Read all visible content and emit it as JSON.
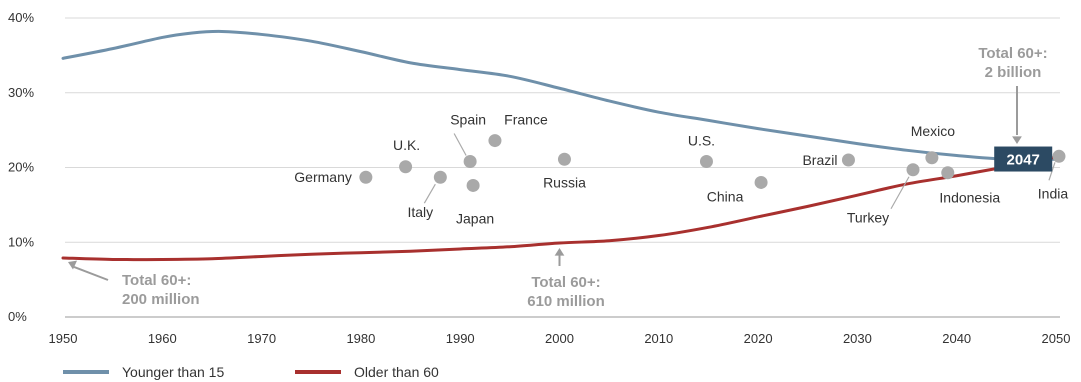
{
  "chart_data": {
    "type": "line",
    "xlim": [
      1950,
      2050
    ],
    "ylim": [
      0,
      40
    ],
    "x_ticks": [
      1950,
      1960,
      1970,
      1980,
      1990,
      2000,
      2010,
      2020,
      2030,
      2040,
      2050
    ],
    "y_ticks": [
      {
        "value": 0,
        "label": "0%"
      },
      {
        "value": 10,
        "label": "10%"
      },
      {
        "value": 20,
        "label": "20%"
      },
      {
        "value": 30,
        "label": "30%"
      },
      {
        "value": 40,
        "label": "40%"
      }
    ],
    "grid": "horizontal",
    "legend_position": "bottom-left",
    "series": [
      {
        "name": "Younger than 15",
        "color": "#6f90aa",
        "x": [
          1950,
          1955,
          1960,
          1963,
          1966,
          1970,
          1975,
          1980,
          1985,
          1990,
          1995,
          2000,
          2005,
          2010,
          2015,
          2020,
          2025,
          2030,
          2035,
          2040,
          2045,
          2050
        ],
        "values": [
          34.6,
          35.9,
          37.4,
          38.0,
          38.2,
          37.8,
          36.9,
          35.5,
          34.0,
          33.1,
          32.2,
          30.6,
          28.9,
          27.4,
          26.3,
          25.2,
          24.2,
          23.2,
          22.3,
          21.6,
          21.1,
          21.1
        ]
      },
      {
        "name": "Older than 60",
        "color": "#a8302e",
        "x": [
          1950,
          1955,
          1960,
          1965,
          1970,
          1975,
          1980,
          1985,
          1990,
          1995,
          2000,
          2005,
          2010,
          2015,
          2020,
          2025,
          2030,
          2035,
          2040,
          2045,
          2050
        ],
        "values": [
          7.9,
          7.7,
          7.7,
          7.8,
          8.1,
          8.4,
          8.6,
          8.8,
          9.1,
          9.4,
          9.9,
          10.2,
          10.9,
          12.0,
          13.4,
          14.8,
          16.3,
          17.8,
          18.9,
          20.1,
          21.4
        ]
      }
    ],
    "countries": [
      {
        "name": "Germany",
        "x": 1980.5,
        "y": 18.7
      },
      {
        "name": "U.K.",
        "x": 1984.5,
        "y": 20.1
      },
      {
        "name": "Italy",
        "x": 1988,
        "y": 18.7
      },
      {
        "name": "Spain",
        "x": 1991,
        "y": 20.8
      },
      {
        "name": "Japan",
        "x": 1991.3,
        "y": 17.6
      },
      {
        "name": "France",
        "x": 1993.5,
        "y": 23.6
      },
      {
        "name": "Russia",
        "x": 2000.5,
        "y": 21.1
      },
      {
        "name": "U.S.",
        "x": 2014.8,
        "y": 20.8
      },
      {
        "name": "China",
        "x": 2020.3,
        "y": 18.0
      },
      {
        "name": "Brazil",
        "x": 2029.1,
        "y": 21.0
      },
      {
        "name": "Turkey",
        "x": 2035.6,
        "y": 19.7
      },
      {
        "name": "Mexico",
        "x": 2037.5,
        "y": 21.3
      },
      {
        "name": "Indonesia",
        "x": 2039.1,
        "y": 19.3
      },
      {
        "name": "India",
        "x": 2050.3,
        "y": 21.5
      }
    ],
    "annotations": [
      {
        "id": "start",
        "lines": [
          "Total 60+:",
          "200 million"
        ],
        "x": 1950,
        "y": 7.9
      },
      {
        "id": "mid",
        "lines": [
          "Total 60+:",
          "610 million"
        ],
        "x": 2000,
        "y": 9.9
      },
      {
        "id": "end",
        "lines": [
          "Total 60+:",
          "2 billion"
        ],
        "x": 2046,
        "y": 21.2
      }
    ],
    "crossover": {
      "label": "2047",
      "x": 2047,
      "y": 21.2
    },
    "badge_color": "#2c4a63"
  }
}
